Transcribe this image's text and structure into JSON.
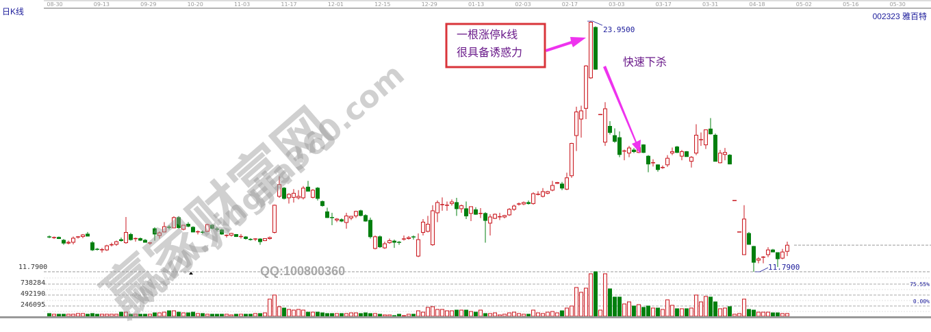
{
  "header": {
    "period_label": "日K线",
    "stock_code": "002323",
    "stock_name": "雅百特"
  },
  "annotations": {
    "box_line1": "一根涨停k线",
    "box_line2": "很具备诱惑力",
    "drop_text": "快速下杀",
    "high_label": "23.9500",
    "low_label": "11.7900",
    "price_axis_label": "11.7900"
  },
  "watermark": {
    "site_cn": "赢家财富网",
    "site_url": "www.yingjia360.com",
    "qq": "QQ:100800360"
  },
  "volume_axis": {
    "labels": [
      "738284",
      "492190",
      "246095"
    ],
    "right_labels": [
      "75.55%",
      "0.00%"
    ]
  },
  "colors": {
    "up": "#c8161d",
    "up_fill": "#fff0f0",
    "down": "#007f0e",
    "annotation": "#ee33ee",
    "box_border": "#d9343a",
    "label": "#1a1a9a"
  },
  "chart_data": {
    "type": "candlestick",
    "x_tick_labels": [
      "08-30",
      "09-13",
      "09-29",
      "10-20",
      "11-03",
      "11-17",
      "12-01",
      "12-15",
      "12-29",
      "01-13",
      "02-03",
      "02-17",
      "03-03",
      "03-17",
      "03-31",
      "04-18",
      "05-02",
      "05-16",
      "05-30"
    ],
    "ylim": [
      11.79,
      23.95
    ],
    "volume_ylim": [
      0,
      984380
    ],
    "last_close": 13.08,
    "ohlc": [
      [
        13.48,
        13.55,
        13.42,
        13.45
      ],
      [
        13.44,
        13.5,
        13.38,
        13.45
      ],
      [
        13.46,
        13.5,
        13.38,
        13.4
      ],
      [
        13.32,
        13.38,
        13.1,
        13.18
      ],
      [
        13.18,
        13.3,
        13.12,
        13.22
      ],
      [
        13.22,
        13.5,
        13.12,
        13.42
      ],
      [
        13.45,
        13.52,
        13.4,
        13.48
      ],
      [
        13.5,
        13.62,
        13.42,
        13.58
      ],
      [
        13.62,
        13.72,
        13.5,
        13.52
      ],
      [
        13.2,
        13.28,
        12.8,
        12.85
      ],
      [
        12.88,
        12.95,
        12.82,
        12.87
      ],
      [
        12.85,
        12.95,
        12.72,
        12.86
      ],
      [
        12.85,
        13.1,
        12.8,
        13.05
      ],
      [
        13.08,
        13.2,
        13.02,
        13.1
      ],
      [
        13.12,
        13.3,
        13.05,
        13.25
      ],
      [
        13.35,
        13.45,
        13.25,
        13.3
      ],
      [
        13.2,
        14.45,
        13.15,
        13.7
      ],
      [
        13.6,
        13.68,
        13.3,
        13.35
      ],
      [
        13.38,
        13.45,
        13.25,
        13.4
      ],
      [
        13.4,
        13.45,
        13.28,
        13.32
      ],
      [
        13.32,
        13.38,
        13.2,
        13.22
      ],
      [
        13.18,
        13.22,
        13.1,
        13.19
      ],
      [
        13.88,
        13.95,
        13.3,
        13.62
      ],
      [
        13.55,
        13.75,
        13.4,
        13.68
      ],
      [
        13.72,
        14.2,
        13.7,
        13.98
      ],
      [
        13.95,
        14.05,
        13.85,
        13.92
      ],
      [
        13.92,
        14.48,
        13.9,
        14.42
      ],
      [
        14.42,
        14.48,
        13.88,
        13.93
      ],
      [
        13.85,
        14.05,
        13.8,
        14.05
      ],
      [
        14.1,
        14.2,
        13.95,
        14.0
      ],
      [
        13.95,
        14.0,
        13.7,
        13.72
      ],
      [
        13.72,
        13.8,
        13.6,
        13.73
      ],
      [
        13.71,
        13.8,
        13.62,
        13.7
      ],
      [
        13.75,
        14.12,
        13.72,
        14.08
      ],
      [
        14.05,
        14.1,
        13.85,
        13.9
      ],
      [
        13.86,
        13.95,
        13.75,
        13.85
      ],
      [
        13.82,
        13.88,
        13.58,
        13.62
      ],
      [
        13.55,
        13.6,
        13.45,
        13.56
      ],
      [
        13.56,
        13.68,
        13.5,
        13.65
      ],
      [
        13.6,
        13.62,
        13.48,
        13.5
      ],
      [
        13.48,
        13.62,
        13.4,
        13.5
      ],
      [
        13.48,
        13.52,
        13.35,
        13.4
      ],
      [
        13.36,
        13.42,
        13.3,
        13.35
      ],
      [
        13.35,
        13.42,
        13.28,
        13.38
      ],
      [
        13.38,
        13.42,
        13.1,
        13.25
      ],
      [
        13.3,
        13.42,
        13.28,
        13.4
      ],
      [
        13.4,
        13.5,
        13.35,
        13.45
      ],
      [
        13.7,
        15.05,
        13.65,
        15.02
      ],
      [
        15.45,
        16.42,
        15.38,
        16.02
      ],
      [
        15.85,
        15.9,
        15.3,
        15.35
      ],
      [
        15.38,
        15.6,
        15.1,
        15.55
      ],
      [
        15.4,
        15.8,
        15.15,
        15.6
      ],
      [
        15.38,
        15.75,
        15.3,
        15.45
      ],
      [
        15.38,
        15.95,
        15.3,
        15.85
      ],
      [
        15.9,
        16.2,
        15.7,
        15.7
      ],
      [
        15.4,
        15.8,
        15.35,
        15.75
      ],
      [
        15.85,
        15.9,
        15.25,
        15.35
      ],
      [
        15.2,
        15.25,
        14.95,
        15.0
      ],
      [
        14.7,
        14.9,
        14.4,
        14.42
      ],
      [
        14.42,
        14.65,
        14.05,
        14.4
      ],
      [
        14.3,
        14.4,
        14.2,
        14.35
      ],
      [
        14.32,
        14.38,
        14.2,
        14.25
      ],
      [
        14.18,
        14.65,
        13.88,
        14.5
      ],
      [
        14.4,
        14.5,
        14.3,
        14.48
      ],
      [
        14.5,
        14.75,
        14.4,
        14.72
      ],
      [
        14.75,
        14.8,
        14.48,
        14.52
      ],
      [
        14.52,
        14.58,
        14.22,
        14.25
      ],
      [
        14.29,
        14.42,
        13.4,
        13.49
      ],
      [
        12.92,
        13.55,
        12.88,
        13.49
      ],
      [
        13.49,
        13.55,
        12.95,
        13.0
      ],
      [
        12.95,
        13.25,
        12.9,
        13.15
      ],
      [
        13.2,
        13.4,
        13.15,
        13.3
      ],
      [
        13.28,
        13.35,
        12.95,
        13.22
      ],
      [
        13.22,
        13.28,
        13.1,
        13.2
      ],
      [
        13.35,
        13.55,
        13.3,
        13.38
      ],
      [
        13.4,
        13.52,
        13.35,
        13.45
      ],
      [
        13.48,
        13.55,
        13.35,
        13.46
      ],
      [
        12.55,
        13.65,
        12.5,
        13.35
      ],
      [
        13.7,
        14.35,
        13.55,
        14.2
      ],
      [
        13.75,
        14.5,
        13.7,
        14.1
      ],
      [
        13.1,
        15.02,
        13.05,
        14.75
      ],
      [
        14.65,
        15.25,
        14.2,
        15.15
      ],
      [
        15.04,
        15.4,
        14.75,
        15.05
      ],
      [
        15.0,
        15.2,
        14.75,
        15.02
      ],
      [
        15.1,
        15.3,
        15.0,
        15.18
      ],
      [
        15.15,
        15.38,
        14.5,
        14.85
      ],
      [
        14.85,
        15.05,
        14.65,
        15.0
      ],
      [
        14.85,
        15.2,
        14.35,
        14.5
      ],
      [
        14.62,
        14.95,
        14.25,
        14.95
      ],
      [
        14.8,
        14.92,
        14.55,
        14.58
      ],
      [
        14.61,
        14.88,
        14.4,
        14.62
      ],
      [
        14.62,
        14.68,
        13.2,
        14.28
      ],
      [
        14.15,
        14.58,
        13.55,
        14.45
      ],
      [
        14.38,
        14.62,
        14.35,
        14.58
      ],
      [
        14.45,
        14.65,
        14.3,
        14.46
      ],
      [
        14.45,
        14.55,
        14.38,
        14.52
      ],
      [
        14.55,
        14.88,
        14.5,
        14.82
      ],
      [
        14.82,
        15.05,
        14.75,
        14.98
      ],
      [
        15.07,
        15.15,
        15.0,
        15.08
      ],
      [
        15.08,
        15.2,
        15.02,
        15.15
      ],
      [
        15.15,
        15.25,
        15.05,
        15.1
      ],
      [
        15.1,
        15.65,
        15.05,
        15.58
      ],
      [
        15.54,
        15.7,
        15.5,
        15.55
      ],
      [
        15.45,
        15.85,
        15.4,
        15.68
      ],
      [
        15.6,
        15.72,
        15.55,
        15.68
      ],
      [
        15.75,
        16.2,
        15.7,
        15.98
      ],
      [
        16.08,
        16.15,
        16.05,
        16.12
      ],
      [
        16.05,
        16.15,
        15.75,
        15.85
      ],
      [
        15.8,
        16.6,
        15.75,
        16.35
      ],
      [
        16.45,
        18.05,
        16.35,
        18.02
      ],
      [
        18.4,
        19.8,
        17.65,
        19.55
      ],
      [
        19.2,
        19.85,
        18.3,
        19.6
      ],
      [
        19.72,
        21.82,
        19.2,
        21.78
      ],
      [
        21.2,
        23.95,
        21.15,
        23.9
      ],
      [
        23.65,
        23.7,
        21.6,
        21.62
      ],
      [
        19.42,
        19.45,
        19.4,
        19.42
      ],
      [
        18.08,
        20.02,
        17.9,
        19.7
      ],
      [
        18.85,
        19.1,
        18.45,
        18.55
      ],
      [
        18.4,
        18.75,
        18.05,
        18.12
      ],
      [
        18.3,
        18.6,
        17.35,
        17.48
      ],
      [
        17.62,
        17.72,
        17.2,
        17.65
      ],
      [
        17.55,
        17.9,
        17.35,
        17.8
      ],
      [
        17.7,
        17.8,
        17.55,
        17.62
      ],
      [
        17.58,
        17.88,
        17.55,
        17.82
      ],
      [
        17.95,
        17.98,
        17.55,
        17.58
      ],
      [
        17.4,
        17.45,
        16.62,
        17.02
      ],
      [
        17.05,
        17.25,
        16.9,
        17.08
      ],
      [
        16.98,
        17.0,
        16.65,
        16.75
      ],
      [
        16.82,
        16.95,
        16.78,
        16.85
      ],
      [
        16.98,
        17.45,
        16.88,
        17.3
      ],
      [
        17.55,
        17.82,
        17.45,
        17.62
      ],
      [
        17.85,
        17.9,
        17.55,
        17.58
      ],
      [
        17.4,
        17.7,
        17.2,
        17.62
      ],
      [
        17.62,
        17.65,
        17.38,
        17.38
      ],
      [
        17.15,
        17.4,
        16.85,
        17.35
      ],
      [
        17.55,
        18.95,
        17.45,
        18.42
      ],
      [
        18.18,
        18.55,
        17.9,
        18.2
      ],
      [
        17.95,
        18.62,
        17.75,
        18.68
      ],
      [
        18.72,
        19.25,
        18.45,
        18.48
      ],
      [
        18.42,
        18.5,
        17.15,
        17.15
      ],
      [
        17.08,
        17.7,
        17.05,
        17.55
      ],
      [
        17.48,
        17.8,
        17.2,
        17.58
      ],
      [
        17.45,
        17.5,
        17.0,
        17.02
      ],
      [
        15.25,
        15.25,
        15.25,
        15.25
      ],
      [
        13.72,
        13.72,
        13.72,
        13.72
      ],
      [
        12.62,
        15.02,
        12.6,
        14.35
      ],
      [
        13.65,
        13.72,
        13.1,
        13.12
      ],
      [
        13.02,
        13.05,
        11.79,
        12.25
      ],
      [
        12.35,
        12.5,
        12.2,
        12.42
      ],
      [
        12.49,
        12.55,
        12.2,
        12.5
      ],
      [
        12.62,
        12.98,
        12.5,
        12.85
      ],
      [
        12.85,
        12.9,
        12.75,
        12.75
      ],
      [
        12.72,
        12.72,
        12.02,
        12.42
      ],
      [
        12.45,
        12.9,
        12.4,
        12.75
      ],
      [
        12.78,
        13.25,
        12.55,
        13.08
      ]
    ],
    "volume": [
      61600,
      46200,
      46200,
      46200,
      46200,
      46200,
      61600,
      61600,
      46200,
      61600,
      46200,
      46200,
      46200,
      46200,
      46200,
      92400,
      92400,
      46200,
      46200,
      46200,
      46200,
      46200,
      77000,
      77000,
      92400,
      123200,
      123200,
      92400,
      77000,
      77000,
      92400,
      61600,
      61600,
      46200,
      46200,
      46200,
      46200,
      46200,
      30800,
      46200,
      46200,
      46200,
      46200,
      61600,
      61600,
      77000,
      385000,
      477400,
      215600,
      184800,
      154000,
      138600,
      154000,
      138600,
      92400,
      92400,
      92400,
      77000,
      61600,
      61600,
      61600,
      61600,
      61600,
      77000,
      77000,
      61600,
      77000,
      61600,
      61600,
      46200,
      30800,
      30800,
      15400,
      46200,
      15400,
      46200,
      46200,
      123200,
      92400,
      200200,
      215600,
      154000,
      154000,
      123200,
      123200,
      138600,
      138600,
      138600,
      107800,
      92400,
      138600,
      61600,
      61600,
      77000,
      30800,
      46200,
      77000,
      92400,
      61600,
      46200,
      46200,
      138600,
      77000,
      61600,
      92400,
      107800,
      77000,
      123200,
      184800,
      231000,
      646800,
      539000,
      631400,
      954800,
      1001000,
      138600,
      954800,
      616000,
      431200,
      431200,
      277200,
      323400,
      231000,
      261800,
      200200,
      231000,
      184800,
      184800,
      154000,
      369600,
      246400,
      169400,
      169400,
      169400,
      184800,
      477400,
      323400,
      446600,
      431200,
      323400,
      169400,
      184800,
      215600,
      46200,
      61600,
      385000,
      154000,
      138600,
      92400,
      92400,
      92400,
      77000,
      77000,
      61600,
      61600
    ]
  }
}
